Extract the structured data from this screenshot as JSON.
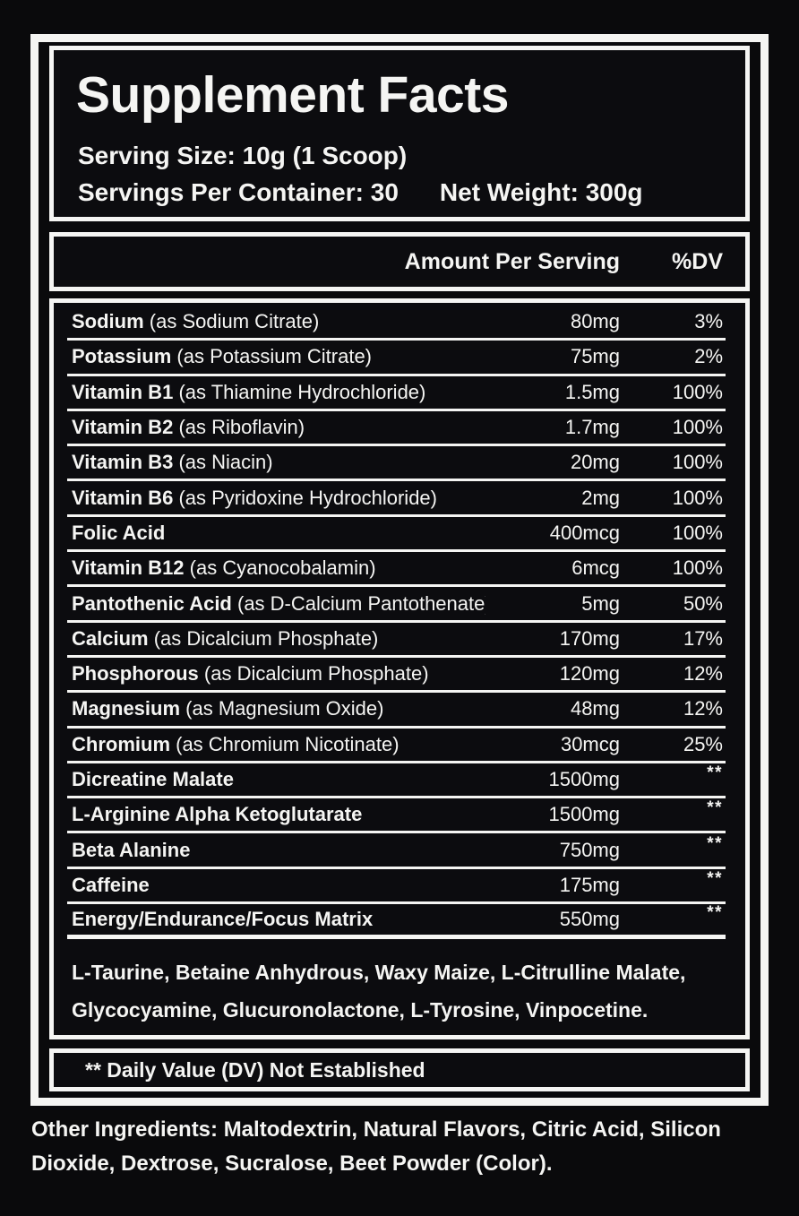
{
  "label": {
    "title": "Supplement Facts",
    "serving_size": "Serving Size: 10g (1 Scoop)",
    "servings_per_container": "Servings Per Container: 30",
    "net_weight": "Net Weight: 300g",
    "colors": {
      "background": "#0a0a0c",
      "panel_background": "#0c0c0f",
      "border": "#f5f5f3",
      "text": "#f5f5f3"
    }
  },
  "table": {
    "header": {
      "amount": "Amount Per Serving",
      "dv": "%DV"
    },
    "rows": [
      {
        "name": "Sodium",
        "detail": "(as Sodium Citrate)",
        "amount": "80mg",
        "dv": "3%"
      },
      {
        "name": "Potassium",
        "detail": "(as Potassium Citrate)",
        "amount": "75mg",
        "dv": "2%"
      },
      {
        "name": "Vitamin B1",
        "detail": "(as Thiamine Hydrochloride)",
        "amount": "1.5mg",
        "dv": "100%"
      },
      {
        "name": "Vitamin B2",
        "detail": "(as Riboflavin)",
        "amount": "1.7mg",
        "dv": "100%"
      },
      {
        "name": "Vitamin B3",
        "detail": "(as Niacin)",
        "amount": "20mg",
        "dv": "100%"
      },
      {
        "name": "Vitamin B6",
        "detail": "(as Pyridoxine Hydrochloride)",
        "amount": "2mg",
        "dv": "100%"
      },
      {
        "name": "Folic Acid",
        "detail": "",
        "amount": "400mcg",
        "dv": "100%"
      },
      {
        "name": "Vitamin B12",
        "detail": "(as Cyanocobalamin)",
        "amount": "6mcg",
        "dv": "100%"
      },
      {
        "name": "Pantothenic Acid",
        "detail": "(as D-Calcium Pantothenate)",
        "amount": "5mg",
        "dv": "50%"
      },
      {
        "name": "Calcium",
        "detail": "(as Dicalcium Phosphate)",
        "amount": "170mg",
        "dv": "17%"
      },
      {
        "name": "Phosphorous",
        "detail": "(as Dicalcium Phosphate)",
        "amount": "120mg",
        "dv": "12%"
      },
      {
        "name": "Magnesium",
        "detail": "(as Magnesium Oxide)",
        "amount": "48mg",
        "dv": "12%"
      },
      {
        "name": "Chromium",
        "detail": "(as Chromium Nicotinate)",
        "amount": "30mcg",
        "dv": "25%"
      },
      {
        "name": "Dicreatine Malate",
        "detail": "",
        "amount": "1500mg",
        "dv": "**"
      },
      {
        "name": "L-Arginine Alpha Ketoglutarate",
        "detail": "",
        "amount": "1500mg",
        "dv": "**"
      },
      {
        "name": "Beta Alanine",
        "detail": "",
        "amount": "750mg",
        "dv": "**"
      },
      {
        "name": "Caffeine",
        "detail": "",
        "amount": "175mg",
        "dv": "**"
      },
      {
        "name": "Energy/Endurance/Focus Matrix",
        "detail": "",
        "amount": "550mg",
        "dv": "**"
      }
    ],
    "additional_ingredients": "L-Taurine, Betaine Anhydrous, Waxy Maize, L-Citrulline Malate, Glycocyamine, Glucuronolactone, L-Tyrosine, Vinpocetine."
  },
  "footnote": "** Daily Value (DV) Not Established",
  "other_ingredients": "Other Ingredients: Maltodextrin, Natural Flavors, Citric Acid, Silicon Dioxide, Dextrose, Sucralose, Beet Powder (Color)."
}
